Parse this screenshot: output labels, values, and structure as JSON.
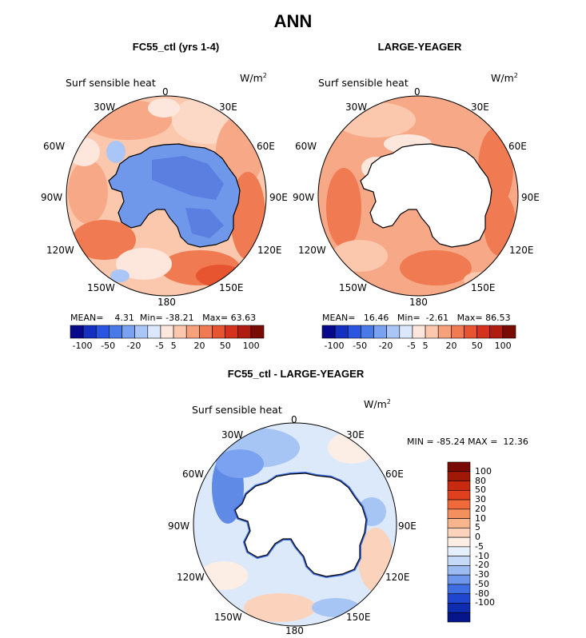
{
  "title": "ANN",
  "variable": "Surf sensible heat",
  "units": {
    "base": "W/m",
    "exponent": "2"
  },
  "longitude_labels": {
    "deg0": "0",
    "w30": "30W",
    "e30": "30E",
    "w60": "60W",
    "e60": "60E",
    "w90": "90W",
    "e90": "90E",
    "w120": "120W",
    "e120": "120E",
    "w150": "150W",
    "e150": "150E",
    "deg180": "180"
  },
  "panels": [
    {
      "title": "FC55_ctl (yrs 1-4)",
      "mean_label": "MEAN=",
      "mean": "4.31",
      "min_label": "Min=",
      "min": "-38.21",
      "max_label": "Max=",
      "max": "63.63"
    },
    {
      "title": "LARGE-YEAGER",
      "mean_label": "MEAN=",
      "mean": "16.46",
      "min_label": "Min=",
      "min": "-2.61",
      "max_label": "Max=",
      "max": "86.53"
    }
  ],
  "difference": {
    "title": "FC55_ctl - LARGE-YEAGER",
    "min_label": "MIN =",
    "min": "-85.24",
    "max_label": "MAX =",
    "max": "12.36"
  },
  "colorbar_top": {
    "colors": [
      "#08088a",
      "#1530c0",
      "#2a55e0",
      "#4a7ae8",
      "#7aa2f0",
      "#a9c6f6",
      "#dbe8fb",
      "#fde7dc",
      "#fbc8ad",
      "#f7a07c",
      "#f07a52",
      "#e65430",
      "#d4321c",
      "#b01c10",
      "#7a0a04"
    ],
    "tick_labels": [
      "-100",
      "-50",
      "-20",
      "-5",
      "5",
      "20",
      "50",
      "100"
    ]
  },
  "colorbar_diff": {
    "colors_top_to_bottom": [
      "#7a0a04",
      "#a01806",
      "#c82a10",
      "#e0401e",
      "#f06a3c",
      "#f4905e",
      "#f8b48c",
      "#fbd3bc",
      "#fdeee5",
      "#e6effc",
      "#c6daf8",
      "#9cbcf2",
      "#6e96ea",
      "#3f6ee2",
      "#1f46cf",
      "#0e2cb0",
      "#06168a"
    ],
    "tick_labels": [
      "100",
      "80",
      "50",
      "30",
      "20",
      "10",
      "5",
      "0",
      "-5",
      "-10",
      "-20",
      "-30",
      "-50",
      "-80",
      "-100"
    ]
  },
  "colors": {
    "antarctica_ctl": "#6f97ea",
    "antarctica_ctl_dark": "#5a7fe0",
    "ocean_light": "#fcd9c6",
    "ocean_mid": "#f7a886",
    "ocean_strong": "#f07a52",
    "ocean_blue": "#dbe8fb",
    "diff_ocean": "#dce9fb",
    "diff_mid": "#a6c4f4",
    "diff_strong": "#5f8ae6",
    "land_none": "#ffffff"
  }
}
